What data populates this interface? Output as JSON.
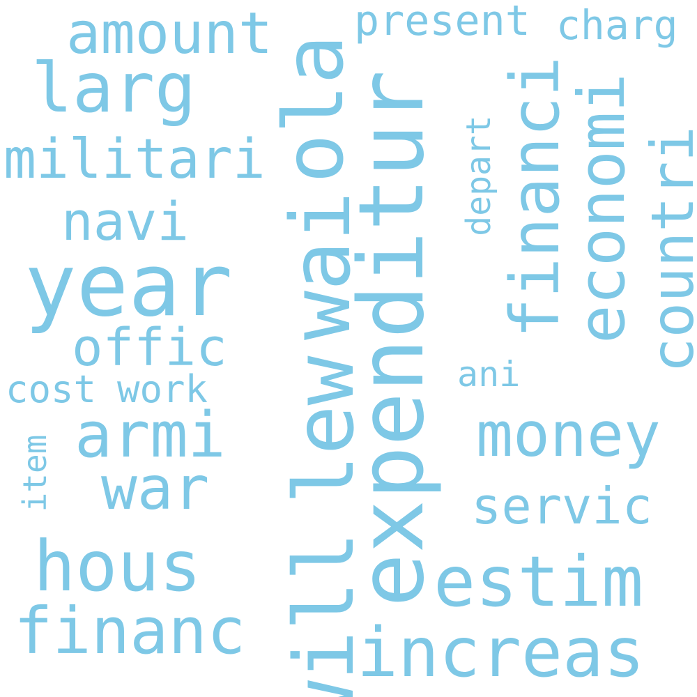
{
  "word_cloud": {
    "color": "#7ec8e6",
    "words": {
      "will": "will",
      "ola": "ola",
      "wai": "wai",
      "lew": "lew",
      "expenditur": "expenditur",
      "year": "year",
      "estim": "estim",
      "increas": "increas",
      "financi": "financi",
      "economi": "economi",
      "countri": "countri",
      "money": "money",
      "hous": "hous",
      "financ": "financ",
      "armi": "armi",
      "war": "war",
      "militari": "militari",
      "larg": "larg",
      "amount": "amount",
      "navi": "navi",
      "offic": "offic",
      "servic": "servic",
      "present": "present",
      "charg": "charg",
      "cost": "cost",
      "work": "work",
      "ani": "ani",
      "depart": "depart",
      "item": "item"
    }
  }
}
